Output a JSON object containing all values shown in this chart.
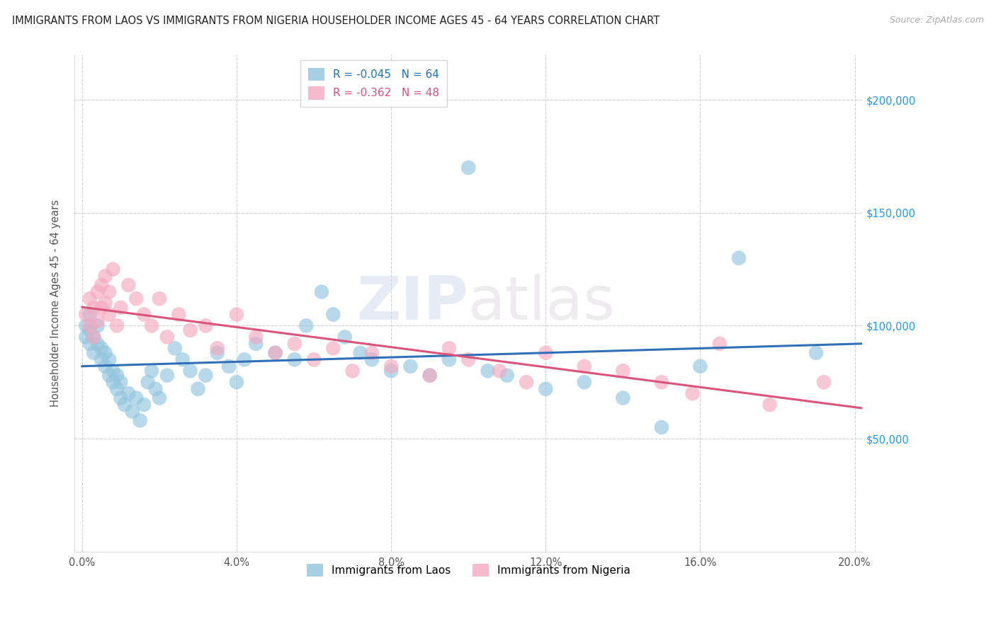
{
  "title": "IMMIGRANTS FROM LAOS VS IMMIGRANTS FROM NIGERIA HOUSEHOLDER INCOME AGES 45 - 64 YEARS CORRELATION CHART",
  "source": "Source: ZipAtlas.com",
  "ylabel": "Householder Income Ages 45 - 64 years",
  "xlim": [
    -0.002,
    0.202
  ],
  "ylim": [
    0,
    220000
  ],
  "xticks": [
    0.0,
    0.04,
    0.08,
    0.12,
    0.16,
    0.2
  ],
  "xticklabels": [
    "0.0%",
    "4.0%",
    "8.0%",
    "12.0%",
    "16.0%",
    "20.0%"
  ],
  "yticks": [
    0,
    50000,
    100000,
    150000,
    200000
  ],
  "right_yticklabels": [
    "",
    "$50,000",
    "$100,000",
    "$150,000",
    "$200,000"
  ],
  "watermark": "ZIPAtlas",
  "laos_R": -0.045,
  "laos_N": 64,
  "nigeria_R": -0.362,
  "nigeria_N": 48,
  "laos_color": "#92c5de",
  "nigeria_color": "#f4a9c0",
  "laos_line_color": "#3070b8",
  "nigeria_line_color": "#d9537a",
  "background_color": "#ffffff",
  "laos_x": [
    0.001,
    0.001,
    0.002,
    0.002,
    0.002,
    0.003,
    0.003,
    0.004,
    0.004,
    0.005,
    0.005,
    0.006,
    0.006,
    0.007,
    0.007,
    0.008,
    0.008,
    0.009,
    0.009,
    0.01,
    0.01,
    0.011,
    0.012,
    0.013,
    0.014,
    0.015,
    0.016,
    0.017,
    0.018,
    0.019,
    0.02,
    0.022,
    0.024,
    0.026,
    0.028,
    0.03,
    0.032,
    0.035,
    0.038,
    0.04,
    0.042,
    0.045,
    0.05,
    0.055,
    0.058,
    0.062,
    0.065,
    0.068,
    0.072,
    0.075,
    0.08,
    0.085,
    0.09,
    0.095,
    0.1,
    0.105,
    0.11,
    0.12,
    0.13,
    0.14,
    0.15,
    0.16,
    0.17,
    0.19
  ],
  "laos_y": [
    100000,
    95000,
    105000,
    92000,
    98000,
    88000,
    95000,
    92000,
    100000,
    85000,
    90000,
    82000,
    88000,
    78000,
    85000,
    75000,
    80000,
    72000,
    78000,
    68000,
    75000,
    65000,
    70000,
    62000,
    68000,
    58000,
    65000,
    75000,
    80000,
    72000,
    68000,
    78000,
    90000,
    85000,
    80000,
    72000,
    78000,
    88000,
    82000,
    75000,
    85000,
    92000,
    88000,
    85000,
    100000,
    115000,
    105000,
    95000,
    88000,
    85000,
    80000,
    82000,
    78000,
    85000,
    170000,
    80000,
    78000,
    72000,
    75000,
    68000,
    55000,
    82000,
    130000,
    88000
  ],
  "nigeria_x": [
    0.001,
    0.002,
    0.002,
    0.003,
    0.003,
    0.004,
    0.004,
    0.005,
    0.005,
    0.006,
    0.006,
    0.007,
    0.007,
    0.008,
    0.009,
    0.01,
    0.012,
    0.014,
    0.016,
    0.018,
    0.02,
    0.022,
    0.025,
    0.028,
    0.032,
    0.035,
    0.04,
    0.045,
    0.05,
    0.055,
    0.06,
    0.065,
    0.07,
    0.075,
    0.08,
    0.09,
    0.095,
    0.1,
    0.108,
    0.115,
    0.12,
    0.13,
    0.14,
    0.15,
    0.158,
    0.165,
    0.178,
    0.192
  ],
  "nigeria_y": [
    105000,
    112000,
    100000,
    108000,
    95000,
    115000,
    102000,
    118000,
    108000,
    110000,
    122000,
    105000,
    115000,
    125000,
    100000,
    108000,
    118000,
    112000,
    105000,
    100000,
    112000,
    95000,
    105000,
    98000,
    100000,
    90000,
    105000,
    95000,
    88000,
    92000,
    85000,
    90000,
    80000,
    88000,
    82000,
    78000,
    90000,
    85000,
    80000,
    75000,
    88000,
    82000,
    80000,
    75000,
    70000,
    92000,
    65000,
    75000
  ]
}
